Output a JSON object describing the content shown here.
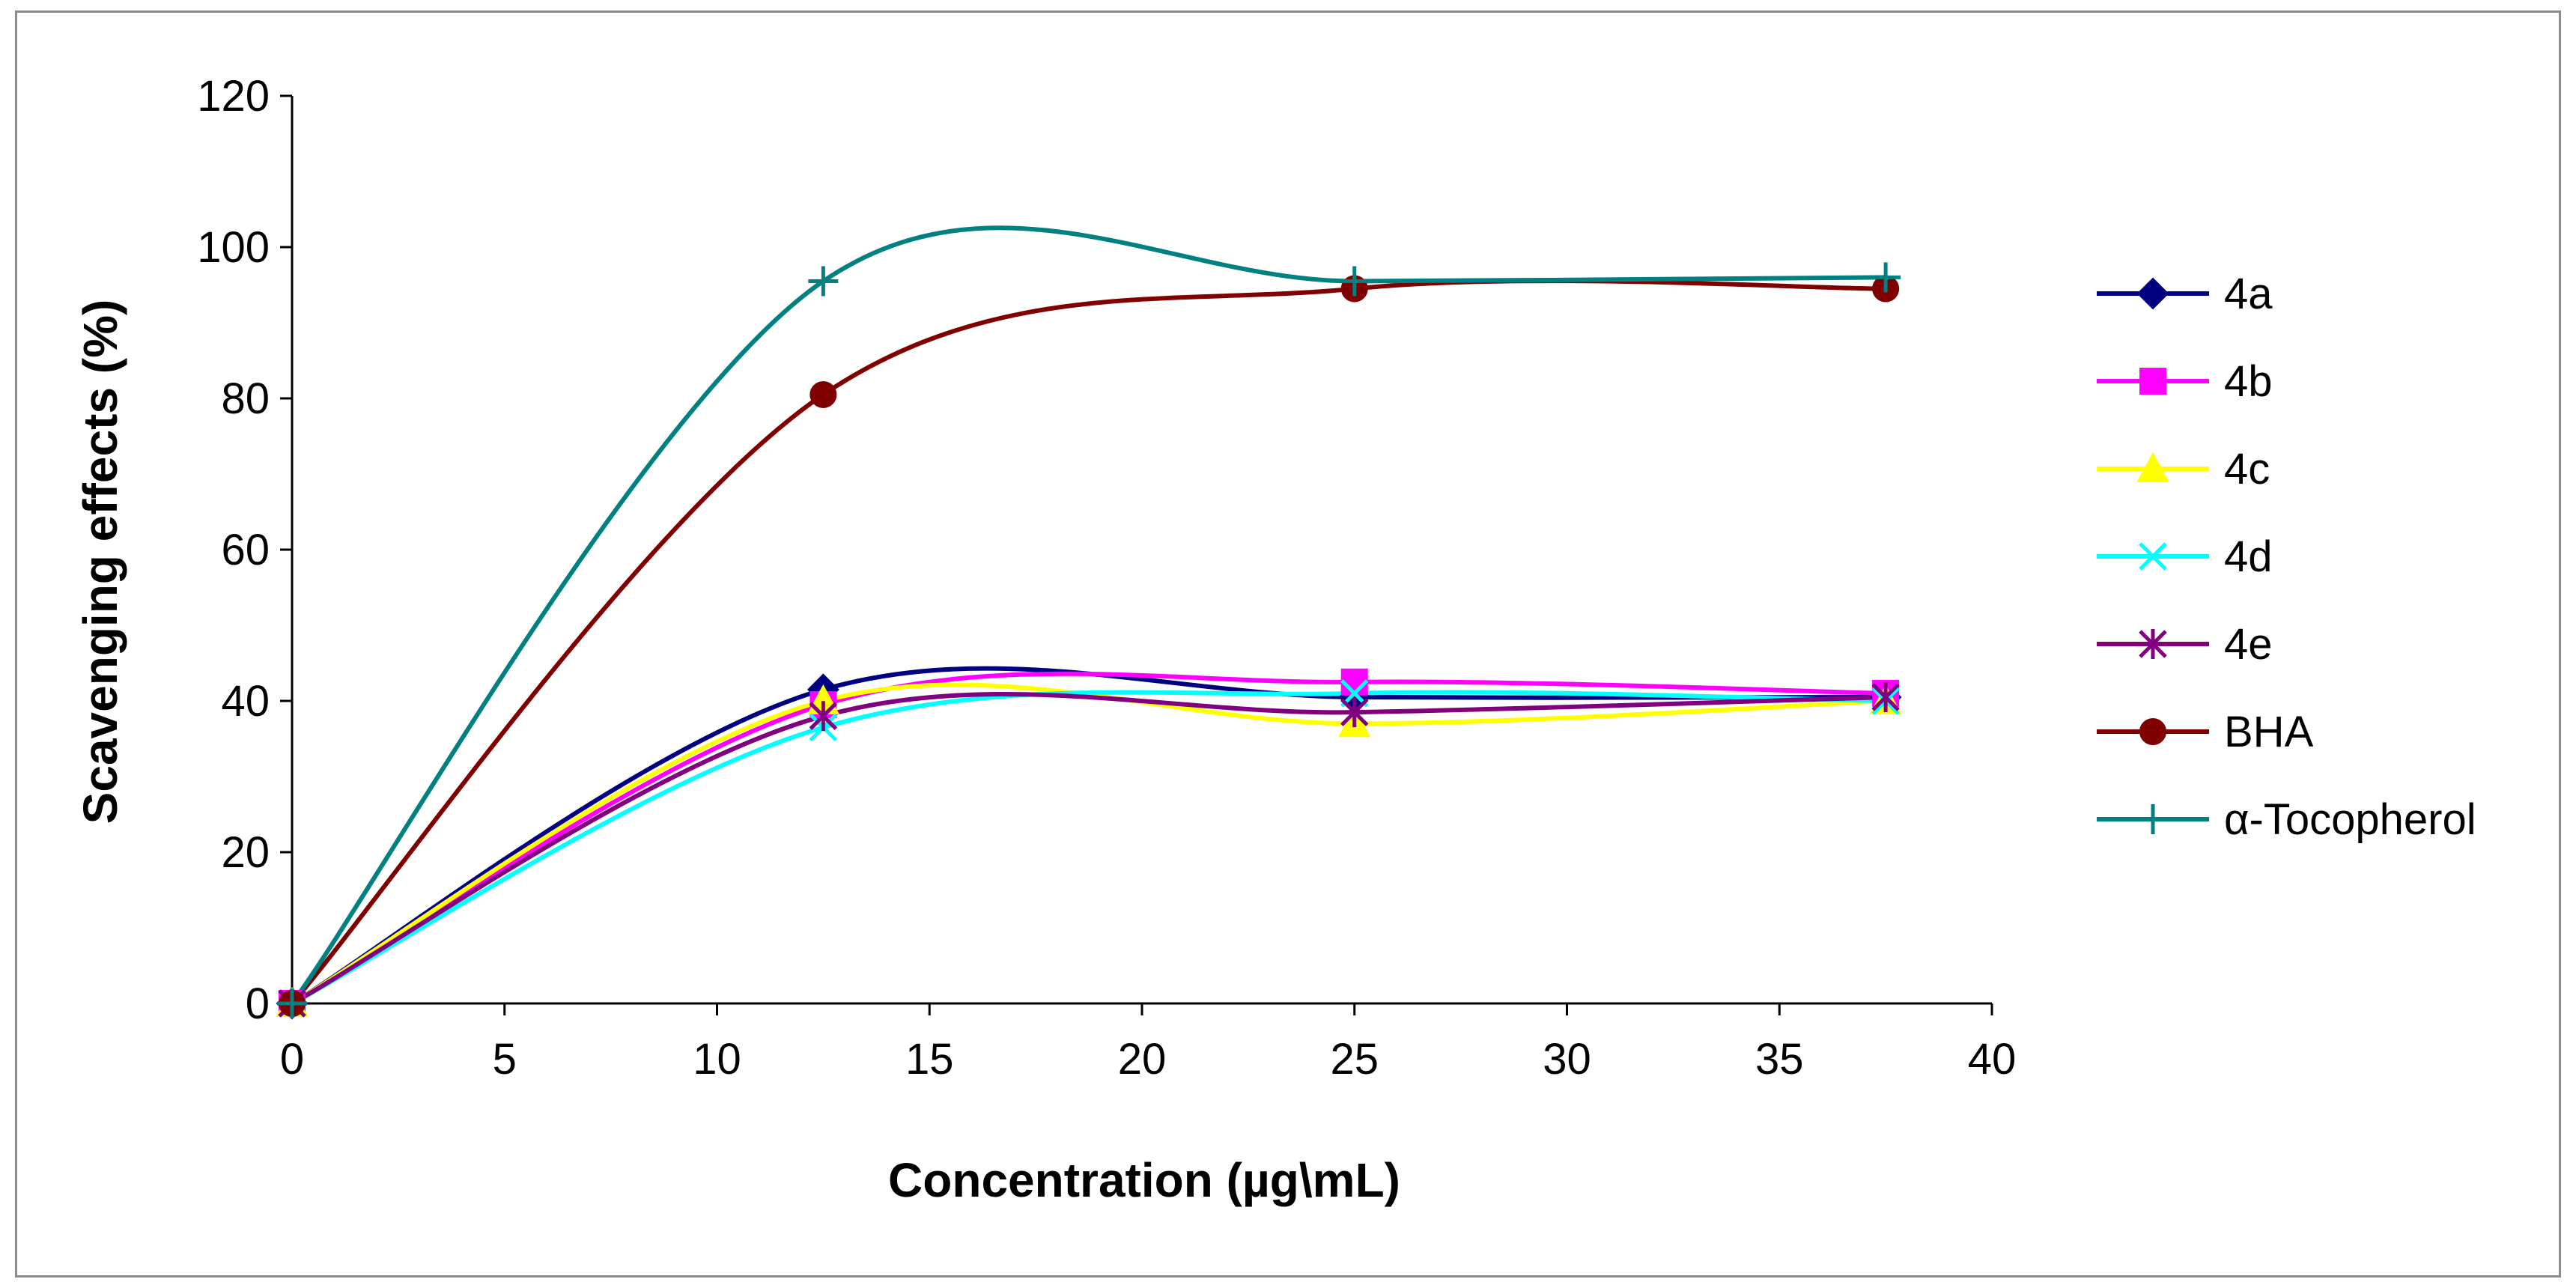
{
  "chart_data": {
    "type": "line",
    "title": "",
    "xlabel": "Concentration (µg\\mL)",
    "ylabel": "Scavenging effects (%)",
    "xlim": [
      0,
      40
    ],
    "ylim": [
      0,
      120
    ],
    "xticks": [
      "0",
      "5",
      "10",
      "15",
      "20",
      "25",
      "30",
      "35",
      "40"
    ],
    "yticks": [
      "0",
      "20",
      "40",
      "60",
      "80",
      "100",
      "120"
    ],
    "grid": false,
    "legend_position": "right",
    "x": [
      0,
      12.5,
      25,
      37.5
    ],
    "series": [
      {
        "name": "4a",
        "values": [
          0,
          41.5,
          40.5,
          40.5
        ],
        "color": "#000080",
        "marker": "diamond"
      },
      {
        "name": "4b",
        "values": [
          0,
          39.5,
          42.5,
          41
        ],
        "color": "#ff00ff",
        "marker": "square"
      },
      {
        "name": "4c",
        "values": [
          0,
          40,
          37,
          40
        ],
        "color": "#ffff00",
        "marker": "triangle"
      },
      {
        "name": "4d",
        "values": [
          0,
          36.5,
          41,
          40
        ],
        "color": "#00ffff",
        "marker": "x"
      },
      {
        "name": "4e",
        "values": [
          0,
          38,
          38.5,
          40.5
        ],
        "color": "#800080",
        "marker": "star"
      },
      {
        "name": "BHA",
        "values": [
          0,
          80.5,
          94.5,
          94.5
        ],
        "color": "#800000",
        "marker": "circle"
      },
      {
        "name": "α-Tocopherol",
        "values": [
          0,
          95.5,
          95.5,
          96
        ],
        "color": "#008080",
        "marker": "plus"
      }
    ]
  }
}
